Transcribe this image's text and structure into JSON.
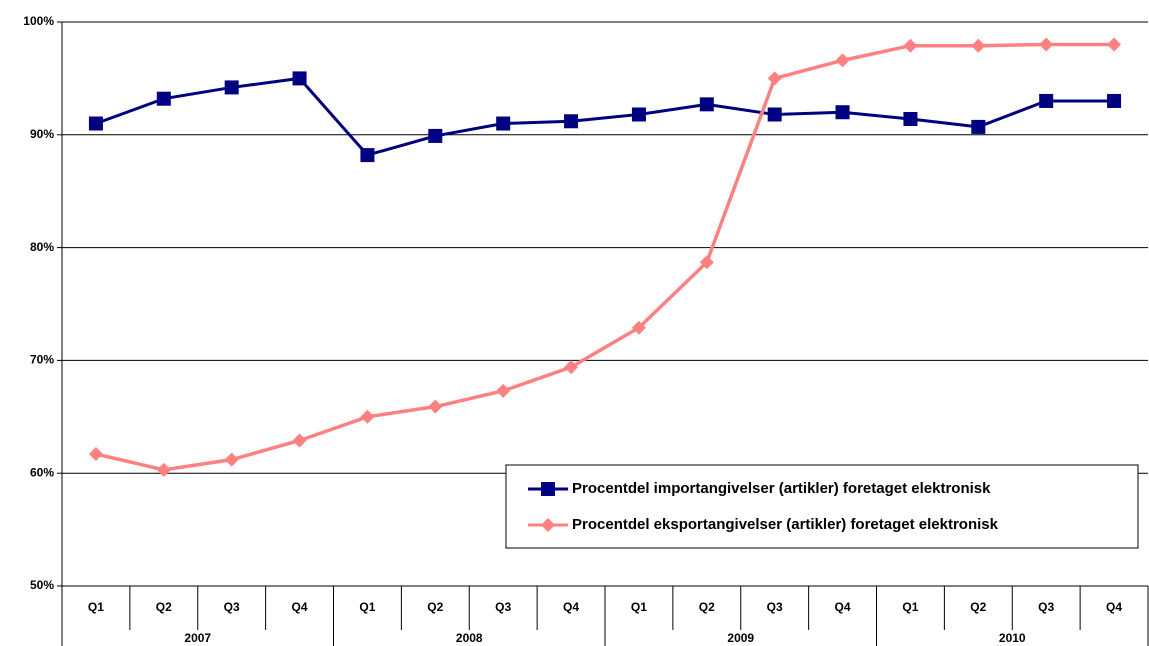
{
  "chart_data": {
    "type": "line",
    "categories": [
      "Q1",
      "Q2",
      "Q3",
      "Q4",
      "Q1",
      "Q2",
      "Q3",
      "Q4",
      "Q1",
      "Q2",
      "Q3",
      "Q4",
      "Q1",
      "Q2",
      "Q3",
      "Q4"
    ],
    "groups": [
      "2007",
      "2008",
      "2009",
      "2010"
    ],
    "series": [
      {
        "name": "Procentdel importangivelser (artikler) foretaget elektronisk",
        "color": "#000080",
        "marker": "square",
        "values": [
          91.0,
          93.2,
          94.2,
          95.0,
          88.2,
          89.9,
          91.0,
          91.2,
          91.8,
          92.7,
          91.8,
          92.0,
          91.4,
          90.7,
          93.0,
          93.0
        ]
      },
      {
        "name": "Procentdel eksportangivelser (artikler) foretaget elektronisk",
        "color": "#ff8080",
        "marker": "diamond",
        "values": [
          61.7,
          60.3,
          61.2,
          62.9,
          65.0,
          65.9,
          67.3,
          69.4,
          72.9,
          78.7,
          95.0,
          96.6,
          97.9,
          97.9,
          98.0,
          98.0
        ]
      }
    ],
    "ylim": [
      50,
      100
    ],
    "yticks": [
      {
        "value": 50,
        "label": "50%"
      },
      {
        "value": 60,
        "label": "60%"
      },
      {
        "value": 70,
        "label": "70%"
      },
      {
        "value": 80,
        "label": "80%"
      },
      {
        "value": 90,
        "label": "90%"
      },
      {
        "value": 100,
        "label": "100%"
      }
    ],
    "grid": true,
    "legend": "lower-right"
  }
}
